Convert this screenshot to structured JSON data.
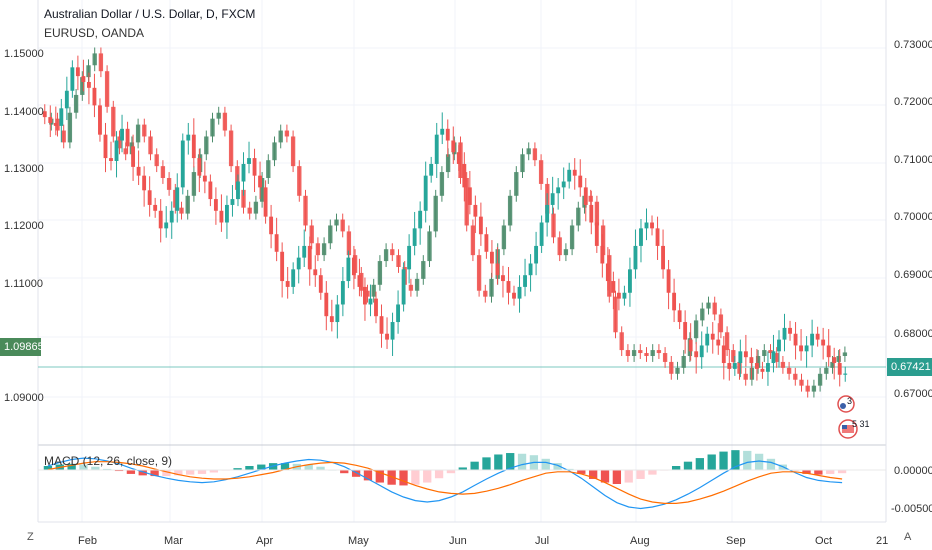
{
  "chart_title": "Australian Dollar / U.S. Dollar, D, FXCM",
  "chart_subtitle": "EURUSD, OANDA",
  "macd_label": "MACD (12, 26, close, 9)",
  "left_axis": {
    "ticks": [
      "1.15000",
      "1.14000",
      "1.13000",
      "1.12000",
      "1.11000",
      "1.09000"
    ],
    "price_tag": "1.09865"
  },
  "right_axis": {
    "ticks": [
      "0.73000",
      "0.72000",
      "0.71000",
      "0.70000",
      "0.69000",
      "0.68000",
      "0.67000"
    ],
    "price_tag": "0.67421"
  },
  "macd_axis": {
    "ticks": [
      "0.00000",
      "-0.00500"
    ]
  },
  "time_axis": {
    "ticks": [
      "Feb",
      "Mar",
      "Apr",
      "May",
      "Jun",
      "Jul",
      "Aug",
      "Sep",
      "Oct",
      "21"
    ]
  },
  "corner_left": "Z",
  "corner_right": "A",
  "events": {
    "badge_1": "3",
    "badge_2": "5 31"
  },
  "colors": {
    "up": "#26a69a",
    "down": "#ef5350",
    "overlay_up": "#4c8c6c",
    "macd_line": "#2196f3",
    "signal_line": "#ff6d00",
    "price_line": "#26a69a"
  },
  "chart_data": {
    "type": "candlestick",
    "series": [
      {
        "name": "Australian Dollar / U.S. Dollar, D, FXCM",
        "axis": "right",
        "ylim": [
          0.662,
          0.738
        ],
        "close": [
          0.718,
          0.717,
          0.7165,
          0.7195,
          0.7225,
          0.7265,
          0.725,
          0.724,
          0.723,
          0.72,
          0.715,
          0.711,
          0.7105,
          0.714,
          0.716,
          0.713,
          0.7095,
          0.708,
          0.7055,
          0.703,
          0.702,
          0.699,
          0.7,
          0.702,
          0.706,
          0.714,
          0.715,
          0.711,
          0.708,
          0.707,
          0.704,
          0.702,
          0.7,
          0.703,
          0.704,
          0.707,
          0.71,
          0.711,
          0.708,
          0.706,
          0.701,
          0.698,
          0.695,
          0.69,
          0.689,
          0.692,
          0.694,
          0.696,
          0.692,
          0.691,
          0.688,
          0.684,
          0.683,
          0.686,
          0.69,
          0.694,
          0.691,
          0.689,
          0.686,
          0.687,
          0.684,
          0.681,
          0.68,
          0.683,
          0.686,
          0.692,
          0.696,
          0.699,
          0.702,
          0.708,
          0.71,
          0.715,
          0.716,
          0.714,
          0.712,
          0.71,
          0.706,
          0.703,
          0.701,
          0.698,
          0.695,
          0.693,
          0.691,
          0.69,
          0.688,
          0.687,
          0.689,
          0.691,
          0.693,
          0.696,
          0.7,
          0.703,
          0.705,
          0.706,
          0.707,
          0.709,
          0.708,
          0.706,
          0.703,
          0.7,
          0.696,
          0.693,
          0.69,
          0.688,
          0.687,
          0.688,
          0.692,
          0.696,
          0.699,
          0.7,
          0.699,
          0.696,
          0.692,
          0.688,
          0.685,
          0.683,
          0.68,
          0.678,
          0.677,
          0.679,
          0.681,
          0.68,
          0.679,
          0.676,
          0.675,
          0.676,
          0.678,
          0.677,
          0.676,
          0.675,
          0.6745,
          0.676,
          0.678,
          0.68,
          0.682,
          0.681,
          0.679,
          0.678,
          0.679,
          0.681,
          0.68,
          0.679,
          0.677,
          0.676,
          0.674,
          0.6742
        ],
        "open": [
          0.719,
          0.718,
          0.717,
          0.7165,
          0.7195,
          0.7225,
          0.7265,
          0.725,
          0.724,
          0.723,
          0.72,
          0.715,
          0.711,
          0.7105,
          0.714,
          0.716,
          0.713,
          0.7095,
          0.708,
          0.7055,
          0.703,
          0.702,
          0.699,
          0.7,
          0.702,
          0.706,
          0.714,
          0.715,
          0.711,
          0.708,
          0.707,
          0.704,
          0.702,
          0.7,
          0.703,
          0.704,
          0.707,
          0.71,
          0.711,
          0.708,
          0.706,
          0.701,
          0.698,
          0.695,
          0.69,
          0.689,
          0.692,
          0.694,
          0.696,
          0.692,
          0.691,
          0.688,
          0.684,
          0.683,
          0.686,
          0.69,
          0.694,
          0.691,
          0.689,
          0.686,
          0.687,
          0.684,
          0.681,
          0.68,
          0.683,
          0.686,
          0.692,
          0.696,
          0.699,
          0.702,
          0.708,
          0.71,
          0.715,
          0.716,
          0.714,
          0.712,
          0.71,
          0.706,
          0.703,
          0.701,
          0.698,
          0.695,
          0.693,
          0.691,
          0.69,
          0.688,
          0.687,
          0.689,
          0.691,
          0.693,
          0.696,
          0.7,
          0.703,
          0.705,
          0.706,
          0.707,
          0.709,
          0.708,
          0.706,
          0.703,
          0.7,
          0.696,
          0.693,
          0.69,
          0.688,
          0.687,
          0.688,
          0.692,
          0.696,
          0.699,
          0.7,
          0.699,
          0.696,
          0.692,
          0.688,
          0.685,
          0.683,
          0.68,
          0.678,
          0.677,
          0.679,
          0.681,
          0.68,
          0.679,
          0.676,
          0.675,
          0.676,
          0.678,
          0.677,
          0.676,
          0.675,
          0.6745,
          0.676,
          0.678,
          0.68,
          0.682,
          0.681,
          0.679,
          0.678,
          0.679,
          0.681,
          0.68,
          0.679,
          0.677,
          0.676,
          0.674
        ]
      },
      {
        "name": "EURUSD, OANDA",
        "axis": "left",
        "ylim": [
          1.083,
          1.158
        ],
        "close": [
          1.137,
          1.138,
          1.136,
          1.134,
          1.139,
          1.142,
          1.145,
          1.147,
          1.149,
          1.146,
          1.14,
          1.135,
          1.133,
          1.132,
          1.134,
          1.137,
          1.135,
          1.132,
          1.13,
          1.128,
          1.126,
          1.123,
          1.122,
          1.125,
          1.129,
          1.132,
          1.135,
          1.138,
          1.139,
          1.136,
          1.13,
          1.126,
          1.123,
          1.122,
          1.124,
          1.128,
          1.131,
          1.134,
          1.136,
          1.135,
          1.13,
          1.125,
          1.12,
          1.117,
          1.115,
          1.117,
          1.12,
          1.121,
          1.119,
          1.115,
          1.112,
          1.109,
          1.108,
          1.11,
          1.114,
          1.116,
          1.115,
          1.113,
          1.11,
          1.109,
          1.111,
          1.114,
          1.119,
          1.125,
          1.129,
          1.132,
          1.134,
          1.128,
          1.12,
          1.115,
          1.109,
          1.108,
          1.111,
          1.116,
          1.12,
          1.125,
          1.129,
          1.132,
          1.133,
          1.131,
          1.127,
          1.122,
          1.118,
          1.115,
          1.116,
          1.12,
          1.123,
          1.125,
          1.124,
          1.12,
          1.115,
          1.108,
          1.102,
          1.099,
          1.098,
          1.099,
          1.0985,
          1.098,
          1.099,
          1.0985,
          1.097,
          1.095,
          1.096,
          1.098,
          1.101,
          1.104,
          1.106,
          1.107,
          1.105,
          1.102,
          1.099,
          1.097,
          1.095,
          1.094,
          1.096,
          1.098,
          1.099,
          1.0985,
          1.097,
          1.096,
          1.095,
          1.094,
          1.093,
          1.092,
          1.093,
          1.095,
          1.096,
          1.097,
          1.098,
          1.0986
        ]
      },
      {
        "name": "MACD",
        "axis": "macd",
        "ylim": [
          -0.007,
          0.003
        ],
        "macd": [
          0.0005,
          0.001,
          0.0014,
          0.0016,
          0.0015,
          0.0012,
          0.0008,
          0.0002,
          -0.0003,
          -0.0008,
          -0.0012,
          -0.0015,
          -0.0017,
          -0.0018,
          -0.0017,
          -0.0014,
          -0.001,
          -0.0005,
          0.0,
          0.0005,
          0.0009,
          0.0012,
          0.0014,
          0.0013,
          0.001,
          0.0004,
          -0.0004,
          -0.0013,
          -0.0022,
          -0.0031,
          -0.0038,
          -0.0043,
          -0.0045,
          -0.0043,
          -0.0038,
          -0.0031,
          -0.0022,
          -0.0013,
          -0.0005,
          0.0002,
          0.0007,
          0.001,
          0.001,
          0.0006,
          -0.0002,
          -0.0012,
          -0.0024,
          -0.0036,
          -0.0046,
          -0.0052,
          -0.0054,
          -0.0052,
          -0.0048,
          -0.0042,
          -0.0034,
          -0.0025,
          -0.0015,
          -0.0005,
          0.0004,
          0.001,
          0.0012,
          0.001,
          0.0004,
          -0.0004,
          -0.0011,
          -0.0015,
          -0.0017,
          -0.0018
        ],
        "signal": [
          0.0,
          0.0003,
          0.0006,
          0.0009,
          0.0011,
          0.0011,
          0.001,
          0.0008,
          0.0005,
          0.0001,
          -0.0003,
          -0.0007,
          -0.001,
          -0.0012,
          -0.0013,
          -0.0013,
          -0.0012,
          -0.001,
          -0.0007,
          -0.0004,
          0.0,
          0.0004,
          0.0007,
          0.0009,
          0.001,
          0.0009,
          0.0006,
          0.0002,
          -0.0004,
          -0.001,
          -0.0016,
          -0.0022,
          -0.0027,
          -0.0031,
          -0.0033,
          -0.0034,
          -0.0033,
          -0.003,
          -0.0026,
          -0.0021,
          -0.0015,
          -0.001,
          -0.0005,
          -0.0003,
          -0.0003,
          -0.0006,
          -0.0011,
          -0.0018,
          -0.0026,
          -0.0034,
          -0.0041,
          -0.0045,
          -0.0047,
          -0.0047,
          -0.0045,
          -0.0041,
          -0.0036,
          -0.003,
          -0.0023,
          -0.0016,
          -0.001,
          -0.0005,
          -0.0003,
          -0.0003,
          -0.0005,
          -0.0008,
          -0.0011,
          -0.0013
        ]
      }
    ]
  }
}
